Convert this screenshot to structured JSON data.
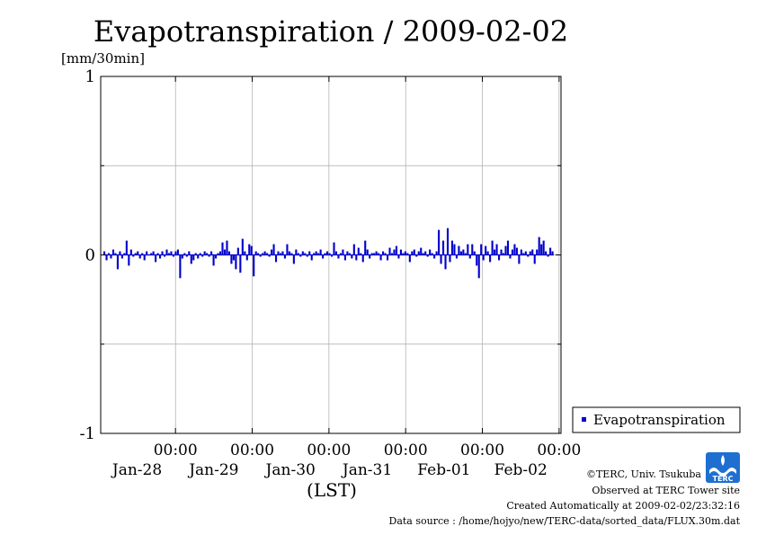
{
  "chart_data": {
    "type": "bar",
    "title": "Evapotranspiration / 2009-02-02",
    "ylabel": "[mm/30min]",
    "xlabel": "(LST)",
    "ylim": [
      -1,
      1
    ],
    "yticks": [
      {
        "value": 1,
        "label": "1"
      },
      {
        "value": 0,
        "label": "0"
      },
      {
        "value": -1,
        "label": "-1"
      }
    ],
    "xlim_days": [
      0,
      6
    ],
    "xticks": [
      {
        "day": 1,
        "time": "00:00",
        "date": "Jan-28"
      },
      {
        "day": 2,
        "time": "00:00",
        "date": "Jan-29"
      },
      {
        "day": 3,
        "time": "00:00",
        "date": "Jan-30"
      },
      {
        "day": 4,
        "time": "00:00",
        "date": "Jan-31"
      },
      {
        "day": 5,
        "time": "00:00",
        "date": "Feb-01"
      },
      {
        "day": 6,
        "time": "00:00",
        "date": "Feb-02"
      }
    ],
    "grid": true,
    "legend_position": "right",
    "series": [
      {
        "name": "Evapotranspiration",
        "color": "#0000cc",
        "bar_spacing_hours": 0.5,
        "values": [
          0.02,
          -0.03,
          0.01,
          -0.02,
          0.03,
          0.01,
          -0.08,
          0.02,
          -0.02,
          0.01,
          0.08,
          -0.06,
          0.03,
          -0.01,
          0.01,
          0.02,
          -0.02,
          0.01,
          -0.03,
          0.02,
          0.0,
          0.01,
          0.02,
          -0.04,
          0.01,
          -0.02,
          0.02,
          -0.01,
          0.03,
          0.01,
          0.02,
          -0.01,
          0.02,
          0.03,
          -0.13,
          -0.02,
          0.01,
          -0.01,
          0.02,
          -0.05,
          -0.03,
          0.01,
          -0.02,
          0.01,
          -0.01,
          0.02,
          0.01,
          -0.01,
          0.02,
          -0.06,
          -0.02,
          0.01,
          0.02,
          0.07,
          0.03,
          0.08,
          0.02,
          -0.05,
          -0.03,
          -0.08,
          0.04,
          -0.1,
          0.09,
          0.02,
          -0.03,
          0.06,
          0.05,
          -0.12,
          0.02,
          0.01,
          -0.01,
          0.01,
          0.02,
          0.01,
          -0.01,
          0.03,
          0.06,
          -0.04,
          0.02,
          0.01,
          0.02,
          -0.02,
          0.06,
          0.02,
          0.01,
          -0.05,
          0.03,
          0.01,
          -0.01,
          0.02,
          0.01,
          -0.01,
          0.02,
          -0.03,
          0.01,
          0.02,
          0.01,
          0.03,
          -0.02,
          0.01,
          0.02,
          0.01,
          -0.01,
          0.07,
          0.02,
          -0.02,
          0.01,
          0.03,
          -0.03,
          0.02,
          0.01,
          -0.02,
          0.06,
          -0.03,
          0.04,
          0.01,
          -0.04,
          0.08,
          0.03,
          -0.02,
          0.01,
          0.01,
          0.02,
          0.01,
          -0.03,
          0.02,
          0.01,
          -0.03,
          0.04,
          0.01,
          0.03,
          0.05,
          -0.02,
          0.03,
          0.01,
          0.02,
          0.01,
          -0.04,
          0.02,
          0.03,
          -0.01,
          0.02,
          0.04,
          0.01,
          0.02,
          -0.01,
          0.03,
          0.01,
          -0.02,
          0.02,
          0.14,
          -0.05,
          0.08,
          -0.08,
          0.15,
          -0.04,
          0.08,
          0.06,
          -0.02,
          0.05,
          0.02,
          0.03,
          0.01,
          0.06,
          -0.02,
          0.06,
          0.02,
          -0.06,
          -0.13,
          0.06,
          -0.03,
          0.05,
          0.02,
          -0.04,
          0.08,
          0.03,
          0.06,
          -0.03,
          0.03,
          0.01,
          0.05,
          0.08,
          -0.02,
          0.03,
          0.06,
          0.04,
          -0.05,
          0.03,
          0.01,
          0.02,
          -0.01,
          0.02,
          0.03,
          -0.05,
          0.03,
          0.1,
          0.06,
          0.08,
          0.02,
          -0.01,
          0.04,
          0.02
        ]
      }
    ]
  },
  "legend": {
    "label": "Evapotranspiration",
    "color": "#0000cc"
  },
  "footer": {
    "copyright": "©TERC, Univ. Tsukuba",
    "observed": "Observed at TERC Tower site",
    "created": "Created Automatically at 2009-02-02/23:32:16",
    "source": "Data source : /home/hojyo/new/TERC-data/sorted_data/FLUX.30m.dat"
  },
  "logo": {
    "text": "TERC",
    "color": "#1e6fd0"
  }
}
